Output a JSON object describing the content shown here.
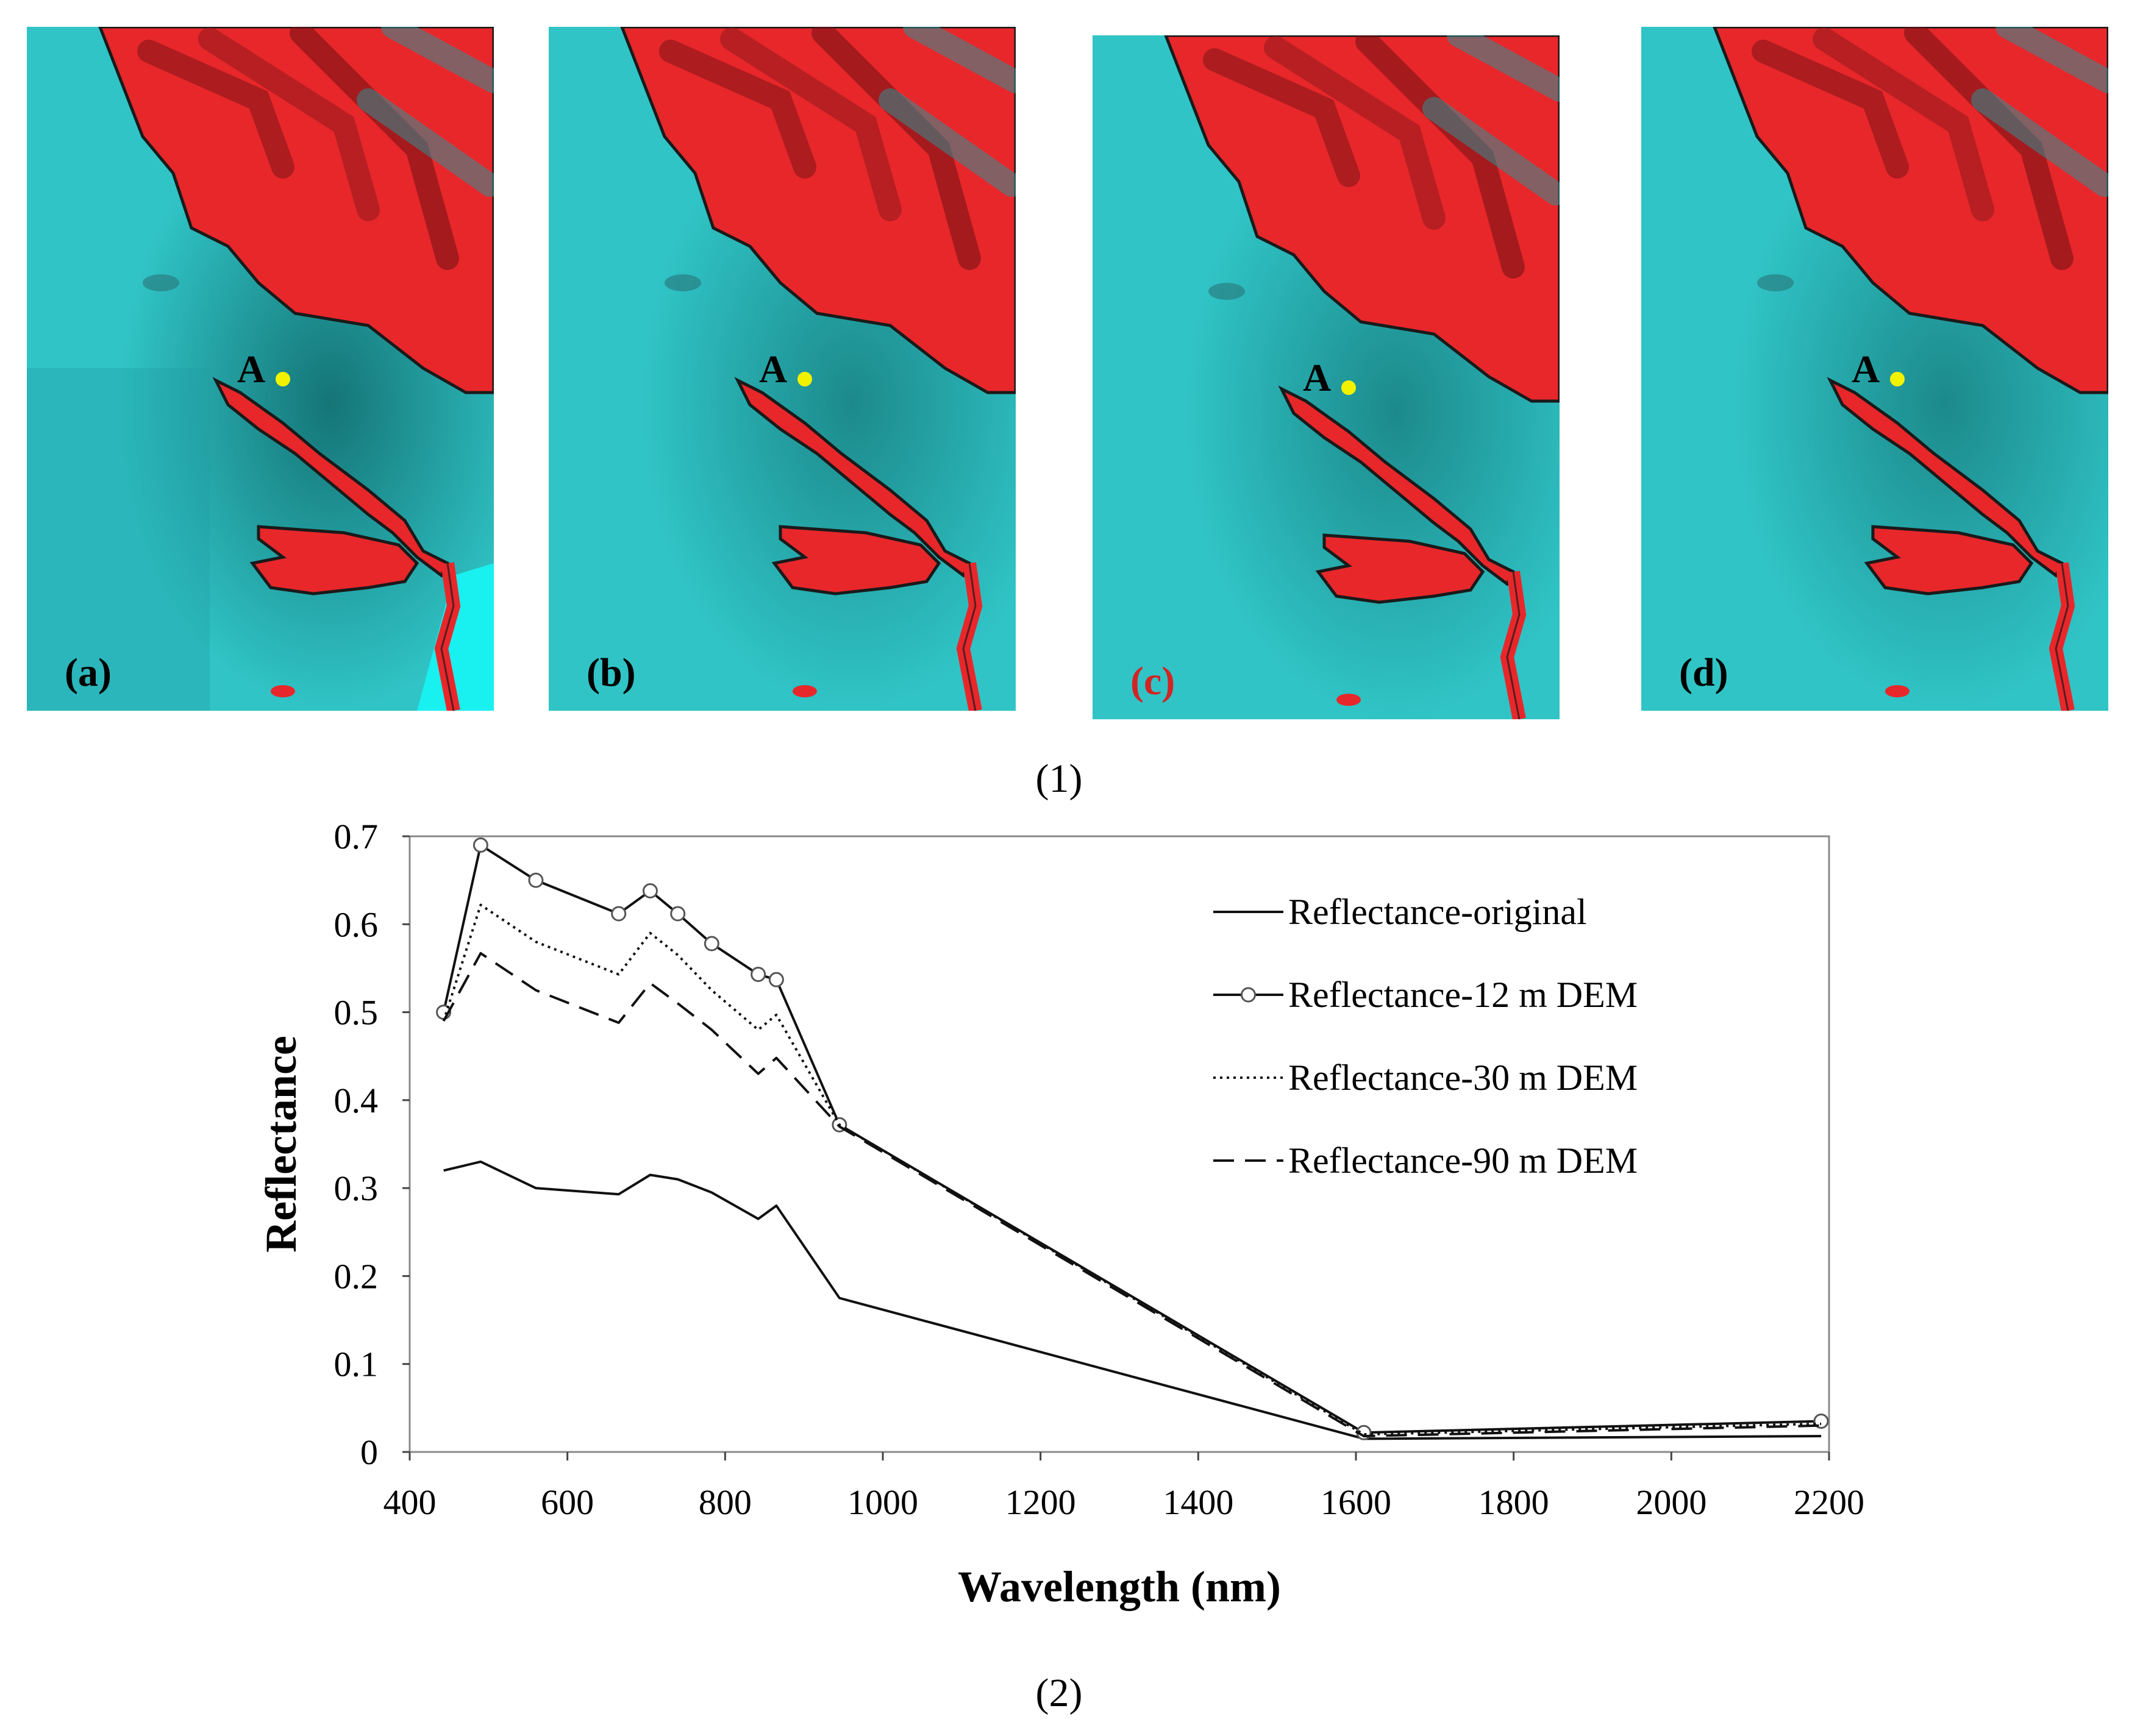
{
  "figure_part1": {
    "caption": "(1)",
    "point_label": "A",
    "colors": {
      "snow": "#30c4c6",
      "rock": "#e8272b",
      "outline": "#1a1a1a",
      "point": "#f2f200",
      "label_c": "#d32424"
    },
    "panels": [
      {
        "label": "(a)",
        "style": "original"
      },
      {
        "label": "(b)",
        "style": "12m"
      },
      {
        "label": "(c)",
        "style": "30m"
      },
      {
        "label": "(d)",
        "style": "90m"
      }
    ]
  },
  "figure_part2": {
    "caption": "(2)"
  },
  "chart_data": {
    "type": "line",
    "title": "",
    "xlabel": "Wavelength (nm)",
    "ylabel": "Reflectance",
    "xlim": [
      400,
      2200
    ],
    "ylim": [
      0,
      0.7
    ],
    "xticks": [
      "400",
      "600",
      "800",
      "1000",
      "1200",
      "1400",
      "1600",
      "1800",
      "2000",
      "2200"
    ],
    "yticks": [
      "0",
      "0.1",
      "0.2",
      "0.3",
      "0.4",
      "0.5",
      "0.6",
      "0.7"
    ],
    "x": [
      443,
      490,
      560,
      665,
      705,
      740,
      783,
      842,
      865,
      945,
      1610,
      2190
    ],
    "series": [
      {
        "name": "Reflectance-original",
        "style": "solid",
        "values": [
          0.32,
          0.33,
          0.3,
          0.293,
          0.315,
          0.31,
          0.295,
          0.265,
          0.28,
          0.175,
          0.015,
          0.018
        ]
      },
      {
        "name": "Reflectance-12 m DEM",
        "style": "solid-circle",
        "values": [
          0.5,
          0.69,
          0.65,
          0.612,
          0.638,
          0.612,
          0.578,
          0.543,
          0.537,
          0.372,
          0.022,
          0.035
        ]
      },
      {
        "name": "Reflectance-30 m DEM",
        "style": "dotted",
        "values": [
          0.49,
          0.622,
          0.58,
          0.543,
          0.59,
          0.565,
          0.525,
          0.48,
          0.497,
          0.372,
          0.02,
          0.032
        ]
      },
      {
        "name": "Reflectance-90 m DEM",
        "style": "dashed",
        "values": [
          0.49,
          0.567,
          0.525,
          0.488,
          0.533,
          0.51,
          0.48,
          0.43,
          0.448,
          0.37,
          0.018,
          0.03
        ]
      }
    ],
    "legend_position": "top-right"
  }
}
